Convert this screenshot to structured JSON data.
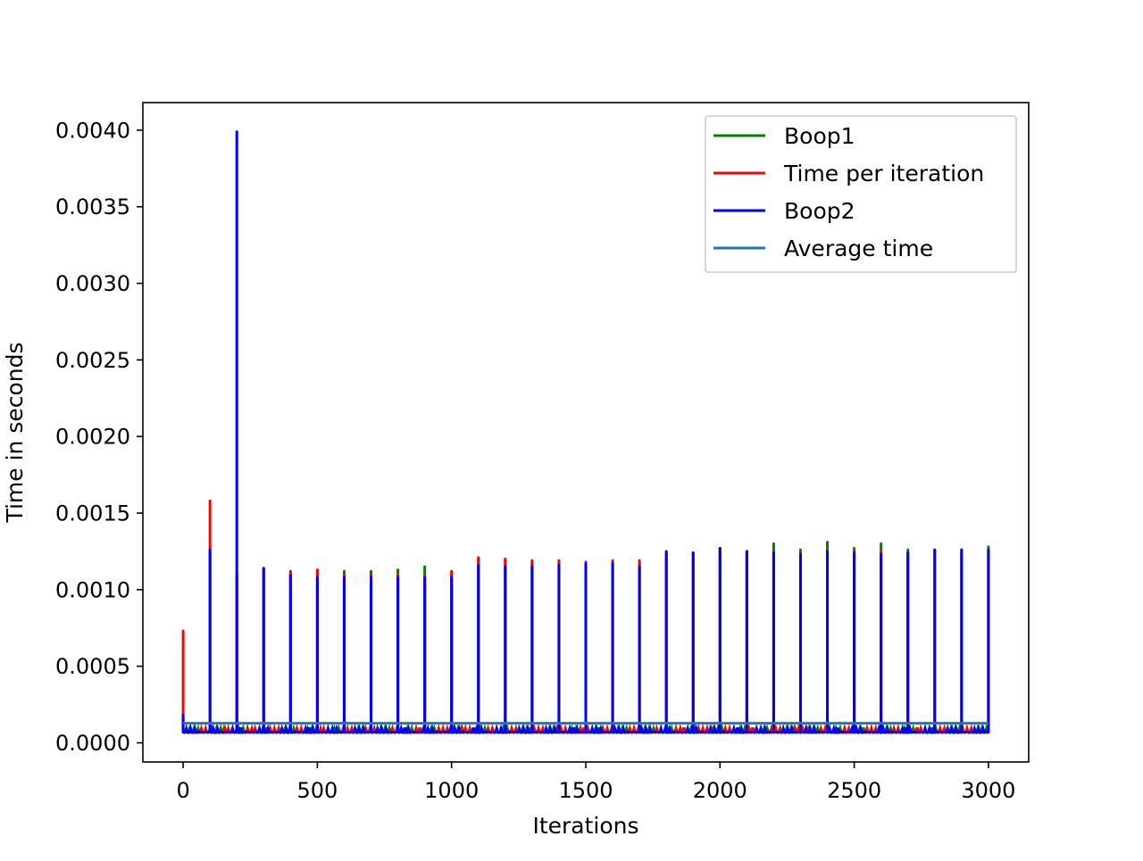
{
  "chart_data": {
    "type": "line",
    "title": "",
    "xlabel": "Iterations",
    "ylabel": "Time in seconds",
    "xlim": [
      -150,
      3150
    ],
    "ylim": [
      -0.000125,
      0.00418
    ],
    "xticks": [
      0,
      500,
      1000,
      1500,
      2000,
      2500,
      3000
    ],
    "xtick_labels": [
      "0",
      "500",
      "1000",
      "1500",
      "2000",
      "2500",
      "3000"
    ],
    "yticks": [
      0,
      0.0005,
      0.001,
      0.0015,
      0.002,
      0.0025,
      0.003,
      0.0035,
      0.004
    ],
    "ytick_labels": [
      "0.0000",
      "0.0005",
      "0.0010",
      "0.0015",
      "0.0020",
      "0.0025",
      "0.0030",
      "0.0035",
      "0.0040"
    ],
    "grid": false,
    "legend_position": "top-right",
    "baseline": 7e-05,
    "spike_interval": 100,
    "series": [
      {
        "name": "Boop1",
        "color": "#008000",
        "spikes": [
          [
            0,
            0.00016
          ],
          [
            100,
            0.00125
          ],
          [
            200,
            0.0011
          ],
          [
            300,
            0.00114
          ],
          [
            400,
            0.00112
          ],
          [
            500,
            0.00111
          ],
          [
            600,
            0.00112
          ],
          [
            700,
            0.00112
          ],
          [
            800,
            0.00113
          ],
          [
            900,
            0.00115
          ],
          [
            1000,
            0.00111
          ],
          [
            1100,
            0.0012
          ],
          [
            1200,
            0.00119
          ],
          [
            1300,
            0.00118
          ],
          [
            1400,
            0.00118
          ],
          [
            1500,
            0.00118
          ],
          [
            1600,
            0.00117
          ],
          [
            1700,
            0.00117
          ],
          [
            1800,
            0.00124
          ],
          [
            1900,
            0.00124
          ],
          [
            2000,
            0.00127
          ],
          [
            2100,
            0.00125
          ],
          [
            2200,
            0.0013
          ],
          [
            2300,
            0.00126
          ],
          [
            2400,
            0.00131
          ],
          [
            2500,
            0.00127
          ],
          [
            2600,
            0.0013
          ],
          [
            2700,
            0.00126
          ],
          [
            2800,
            0.00126
          ],
          [
            2900,
            0.00126
          ],
          [
            3000,
            0.00128
          ]
        ]
      },
      {
        "name": "Time per iteration",
        "color": "#ff0000",
        "spikes": [
          [
            0,
            0.00073
          ],
          [
            100,
            0.00158
          ],
          [
            200,
            0.00109
          ],
          [
            300,
            0.00113
          ],
          [
            400,
            0.00111
          ],
          [
            500,
            0.00113
          ],
          [
            600,
            0.0011
          ],
          [
            700,
            0.0011
          ],
          [
            800,
            0.0011
          ],
          [
            900,
            0.00109
          ],
          [
            1000,
            0.00112
          ],
          [
            1100,
            0.00121
          ],
          [
            1200,
            0.0012
          ],
          [
            1300,
            0.00119
          ],
          [
            1400,
            0.00119
          ],
          [
            1500,
            0.00118
          ],
          [
            1600,
            0.00119
          ],
          [
            1700,
            0.00119
          ],
          [
            1800,
            0.00124
          ],
          [
            1900,
            0.00124
          ],
          [
            2000,
            0.00127
          ],
          [
            2100,
            0.00125
          ],
          [
            2200,
            0.00125
          ],
          [
            2300,
            0.00124
          ],
          [
            2400,
            0.00125
          ],
          [
            2500,
            0.00125
          ],
          [
            2600,
            0.00125
          ],
          [
            2700,
            0.00124
          ],
          [
            2800,
            0.00125
          ],
          [
            2900,
            0.00125
          ],
          [
            3000,
            0.00126
          ]
        ]
      },
      {
        "name": "Boop2",
        "color": "#0000ff",
        "spikes": [
          [
            0,
            0.00018
          ],
          [
            100,
            0.00126
          ],
          [
            200,
            0.00399
          ],
          [
            300,
            0.00114
          ],
          [
            400,
            0.00109
          ],
          [
            500,
            0.00108
          ],
          [
            600,
            0.00108
          ],
          [
            700,
            0.00108
          ],
          [
            800,
            0.00108
          ],
          [
            900,
            0.00108
          ],
          [
            1000,
            0.00108
          ],
          [
            1100,
            0.00116
          ],
          [
            1200,
            0.00115
          ],
          [
            1300,
            0.00115
          ],
          [
            1400,
            0.00116
          ],
          [
            1500,
            0.00117
          ],
          [
            1600,
            0.00117
          ],
          [
            1700,
            0.00115
          ],
          [
            1800,
            0.00125
          ],
          [
            1900,
            0.00124
          ],
          [
            2000,
            0.00127
          ],
          [
            2100,
            0.00125
          ],
          [
            2200,
            0.00124
          ],
          [
            2300,
            0.00123
          ],
          [
            2400,
            0.00125
          ],
          [
            2500,
            0.00124
          ],
          [
            2600,
            0.00123
          ],
          [
            2700,
            0.00124
          ],
          [
            2800,
            0.00126
          ],
          [
            2900,
            0.00126
          ],
          [
            3000,
            0.00126
          ]
        ]
      },
      {
        "name": "Average time",
        "color": "#1f77b4",
        "constant": 0.000128,
        "x_range": [
          0,
          3000
        ]
      }
    ]
  }
}
